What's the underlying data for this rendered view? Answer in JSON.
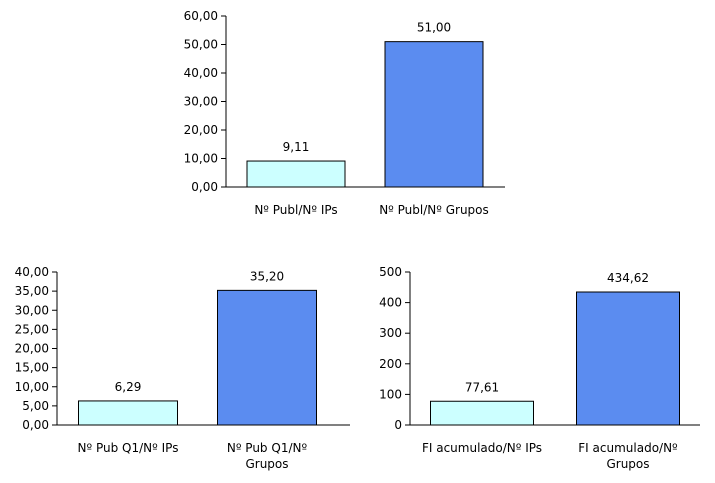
{
  "colors": {
    "bar_ips": "#ccffff",
    "bar_grupos": "#5b8cf0",
    "axis": "#000000"
  },
  "chart_data": [
    {
      "type": "bar",
      "categories": [
        [
          "Nº Publ/Nº IPs"
        ],
        [
          "Nº Publ/Nº Grupos"
        ]
      ],
      "values": [
        9.11,
        51.0
      ],
      "data_labels": [
        "9,11",
        "51,00"
      ],
      "yticks": [
        "0,00",
        "10,00",
        "20,00",
        "30,00",
        "40,00",
        "50,00",
        "60,00"
      ],
      "ylim": [
        0,
        60
      ],
      "grid": false,
      "legend": "none"
    },
    {
      "type": "bar",
      "categories": [
        [
          "Nº Pub Q1/Nº IPs"
        ],
        [
          "Nº Pub Q1/Nº",
          "Grupos"
        ]
      ],
      "values": [
        6.29,
        35.2
      ],
      "data_labels": [
        "6,29",
        "35,20"
      ],
      "yticks": [
        "0,00",
        "5,00",
        "10,00",
        "15,00",
        "20,00",
        "25,00",
        "30,00",
        "35,00",
        "40,00"
      ],
      "ylim": [
        0,
        40
      ],
      "grid": false,
      "legend": "none"
    },
    {
      "type": "bar",
      "categories": [
        [
          "FI acumulado/Nº IPs"
        ],
        [
          "FI acumulado/Nº",
          "Grupos"
        ]
      ],
      "values": [
        77.61,
        434.62
      ],
      "data_labels": [
        "77,61",
        "434,62"
      ],
      "yticks": [
        "0",
        "100",
        "200",
        "300",
        "400",
        "500"
      ],
      "ylim": [
        0,
        500
      ],
      "grid": false,
      "legend": "none"
    }
  ]
}
